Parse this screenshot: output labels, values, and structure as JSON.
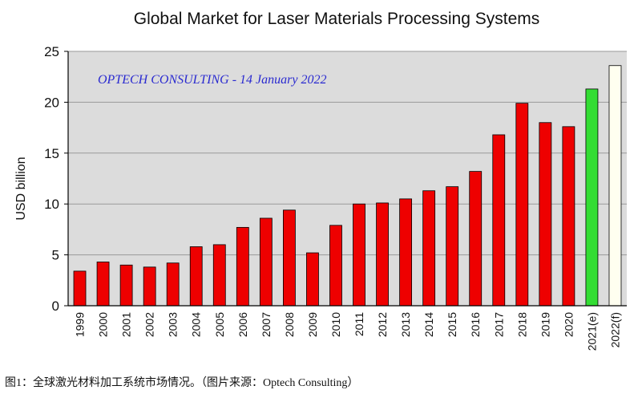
{
  "chart_data": {
    "type": "bar",
    "title": "Global Market for Laser Materials Processing Systems",
    "ylabel": "USD billion",
    "annotation": "OPTECH CONSULTING - 14 January 2022",
    "ylim": [
      0,
      25
    ],
    "yticks": [
      0,
      5,
      10,
      15,
      20,
      25
    ],
    "grid": true,
    "categories": [
      "1999",
      "2000",
      "2001",
      "2002",
      "2003",
      "2004",
      "2005",
      "2006",
      "2007",
      "2008",
      "2009",
      "2010",
      "2011",
      "2012",
      "2013",
      "2014",
      "2015",
      "2016",
      "2017",
      "2018",
      "2019",
      "2020",
      "2021(e)",
      "2022(f)"
    ],
    "values": [
      3.4,
      4.3,
      4.0,
      3.8,
      4.2,
      5.8,
      6.0,
      7.7,
      8.6,
      9.4,
      5.2,
      7.9,
      10.0,
      10.1,
      10.5,
      11.3,
      11.7,
      13.2,
      16.8,
      19.9,
      18.0,
      17.6,
      21.3,
      23.6
    ],
    "bar_colors": [
      "#ee0000",
      "#ee0000",
      "#ee0000",
      "#ee0000",
      "#ee0000",
      "#ee0000",
      "#ee0000",
      "#ee0000",
      "#ee0000",
      "#ee0000",
      "#ee0000",
      "#ee0000",
      "#ee0000",
      "#ee0000",
      "#ee0000",
      "#ee0000",
      "#ee0000",
      "#ee0000",
      "#ee0000",
      "#ee0000",
      "#ee0000",
      "#ee0000",
      "#33dd33",
      "#fffff0"
    ],
    "colors": {
      "plot_background": "#dcdcdc",
      "grid": "#9a9a9a",
      "bar_outline": "#000000",
      "annotation": "#2a2ad0"
    }
  },
  "caption": "图1：全球激光材料加工系统市场情况。（图片来源：Optech Consulting）"
}
